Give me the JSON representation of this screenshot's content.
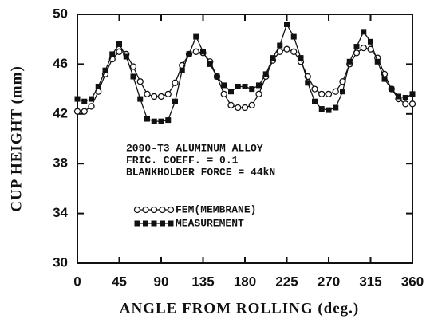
{
  "chart_data": {
    "type": "line",
    "xlabel": "ANGLE FROM ROLLING (deg.)",
    "ylabel": "CUP HEIGHT (mm)",
    "annotations": [
      "2090-T3 ALUMINUM ALLOY",
      "FRIC. COEFF. = 0.1",
      "BLANKHOLDER FORCE = 44kN"
    ],
    "x": [
      0,
      7.5,
      15,
      22.5,
      30,
      37.5,
      45,
      52.5,
      60,
      67.5,
      75,
      82.5,
      90,
      97.5,
      105,
      112.5,
      120,
      127.5,
      135,
      142.5,
      150,
      157.5,
      165,
      172.5,
      180,
      187.5,
      195,
      202.5,
      210,
      217.5,
      225,
      232.5,
      240,
      247.5,
      255,
      262.5,
      270,
      277.5,
      285,
      292.5,
      300,
      307.5,
      315,
      322.5,
      330,
      337.5,
      345,
      352.5,
      360
    ],
    "series": [
      {
        "name": "FEM(MEMBRANE)",
        "color": "#111111",
        "marker": "circle",
        "values": [
          42.2,
          42.2,
          42.6,
          43.8,
          45.2,
          46.4,
          47.0,
          46.8,
          45.8,
          44.6,
          43.6,
          43.4,
          43.4,
          43.6,
          44.5,
          45.9,
          46.8,
          47.0,
          46.9,
          46.2,
          45.0,
          43.6,
          42.7,
          42.5,
          42.5,
          42.7,
          43.6,
          45.0,
          46.3,
          47.0,
          47.2,
          47.0,
          46.2,
          45.0,
          44.0,
          43.6,
          43.6,
          43.8,
          44.6,
          46.0,
          46.9,
          47.3,
          47.2,
          46.5,
          45.2,
          44.0,
          43.2,
          42.8,
          42.8
        ]
      },
      {
        "name": "MEASUREMENT",
        "color": "#111111",
        "marker": "square",
        "values": [
          43.2,
          43.0,
          43.2,
          44.2,
          45.5,
          46.8,
          47.6,
          46.6,
          45.0,
          43.2,
          41.6,
          41.4,
          41.4,
          41.5,
          43.0,
          45.5,
          46.8,
          48.2,
          47.0,
          46.0,
          45.0,
          44.3,
          43.8,
          44.2,
          44.2,
          44.0,
          44.3,
          45.2,
          46.5,
          47.5,
          49.2,
          48.2,
          46.5,
          44.5,
          43.0,
          42.4,
          42.3,
          42.5,
          43.8,
          46.2,
          47.4,
          48.6,
          47.8,
          46.2,
          44.8,
          44.0,
          43.4,
          43.3,
          43.6
        ]
      }
    ],
    "xlim": [
      0,
      360
    ],
    "xticks": [
      0,
      45,
      90,
      135,
      180,
      225,
      270,
      315,
      360
    ],
    "ylim": [
      30,
      50
    ],
    "yticks": [
      30,
      34,
      38,
      42,
      46,
      50
    ]
  }
}
